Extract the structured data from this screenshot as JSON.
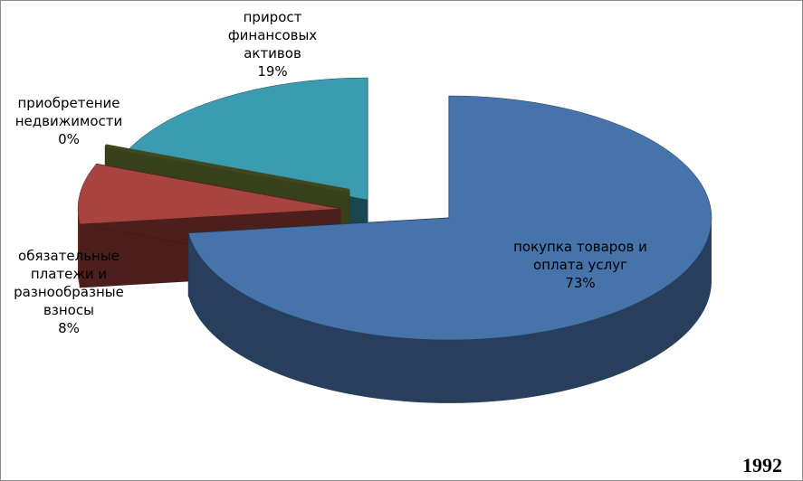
{
  "chart_data": {
    "type": "pie3d",
    "categories": [
      "покупка товаров и оплата услуг",
      "обязательные платежи и разнообразные взносы",
      "приобретение недвижимости",
      "прирост финансовых активов"
    ],
    "values": [
      73,
      8,
      0,
      19
    ],
    "value_labels": [
      "73%",
      "8%",
      "0%",
      "19%"
    ],
    "colors": [
      "#4673a9",
      "#a8443f",
      "#7d8f3c",
      "#3a9bb1"
    ],
    "annotation": "1992"
  }
}
